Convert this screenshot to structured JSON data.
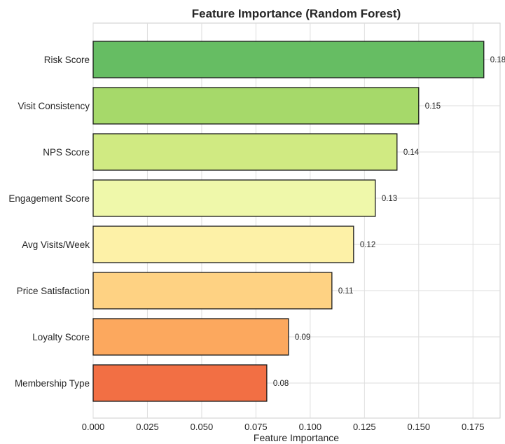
{
  "chart_data": {
    "type": "bar",
    "orientation": "horizontal",
    "title": "Feature Importance (Random Forest)",
    "xlabel": "Feature Importance",
    "ylabel": "",
    "categories": [
      "Risk Score",
      "Visit Consistency",
      "NPS Score",
      "Engagement Score",
      "Avg Visits/Week",
      "Price Satisfaction",
      "Loyalty Score",
      "Membership Type"
    ],
    "values": [
      0.18,
      0.15,
      0.14,
      0.13,
      0.12,
      0.11,
      0.09,
      0.08
    ],
    "value_labels": [
      "0.18",
      "0.15",
      "0.14",
      "0.13",
      "0.12",
      "0.11",
      "0.09",
      "0.08"
    ],
    "colors": [
      "#66bd63",
      "#a6d96a",
      "#d0ea82",
      "#eff8aa",
      "#fdf1a7",
      "#fed283",
      "#fca85e",
      "#f26f44"
    ],
    "xlim": [
      0,
      0.1875
    ],
    "xticks": [
      0,
      0.025,
      0.05,
      0.075,
      0.1,
      0.125,
      0.15,
      0.175
    ],
    "xtick_labels": [
      "0.000",
      "0.025",
      "0.050",
      "0.075",
      "0.100",
      "0.125",
      "0.150",
      "0.175"
    ],
    "grid": true,
    "legend": "none"
  }
}
